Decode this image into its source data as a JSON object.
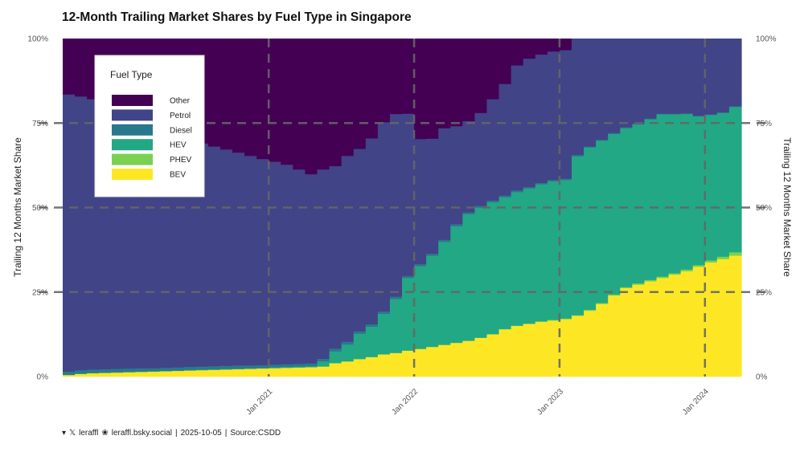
{
  "chart_data": {
    "type": "area",
    "subtype": "stepped-stacked-100",
    "title": "12-Month Trailing Market Shares by Fuel Type in Singapore",
    "xlabel": "",
    "ylabel": "Trailing 12 Months Market Share",
    "ylabel_right": "Trailing 12 Months Market Share",
    "ylim": [
      0,
      1
    ],
    "yticks": [
      0,
      0.25,
      0.5,
      0.75,
      1.0
    ],
    "ytick_labels": [
      "0%",
      "25%",
      "50%",
      "75%",
      "100%"
    ],
    "xticks": [
      {
        "month_index": 17,
        "label": "Jan 2021"
      },
      {
        "month_index": 29,
        "label": "Jan 2022"
      },
      {
        "month_index": 41,
        "label": "Jan 2023"
      },
      {
        "month_index": 53,
        "label": "Jan 2024"
      }
    ],
    "n_months": 56,
    "grid": "dashed at major ticks",
    "legend": {
      "title": "Fuel Type",
      "position": "top-left inset",
      "entries": [
        {
          "name": "Other",
          "color": "#440154"
        },
        {
          "name": "Petrol",
          "color": "#414487"
        },
        {
          "name": "Diesel",
          "color": "#2A788E"
        },
        {
          "name": "HEV",
          "color": "#22A884"
        },
        {
          "name": "PHEV",
          "color": "#7AD151"
        },
        {
          "name": "BEV",
          "color": "#FDE725"
        }
      ]
    },
    "series": [
      {
        "name": "BEV",
        "color": "#FDE725",
        "values": [
          0.005,
          0.008,
          0.01,
          0.011,
          0.012,
          0.013,
          0.014,
          0.015,
          0.016,
          0.017,
          0.018,
          0.019,
          0.02,
          0.021,
          0.022,
          0.023,
          0.024,
          0.025,
          0.026,
          0.027,
          0.028,
          0.03,
          0.04,
          0.045,
          0.052,
          0.058,
          0.066,
          0.07,
          0.077,
          0.082,
          0.088,
          0.094,
          0.1,
          0.106,
          0.115,
          0.125,
          0.14,
          0.15,
          0.156,
          0.162,
          0.166,
          0.17,
          0.18,
          0.195,
          0.215,
          0.24,
          0.262,
          0.272,
          0.282,
          0.292,
          0.302,
          0.312,
          0.325,
          0.338,
          0.348,
          0.358
        ]
      },
      {
        "name": "PHEV",
        "color": "#7AD151",
        "values": [
          0.0,
          0.0,
          0.0,
          0.0,
          0.0,
          0.0,
          0.0,
          0.0,
          0.0,
          0.0,
          0.0,
          0.0,
          0.0,
          0.0,
          0.0,
          0.0,
          0.0,
          0.0,
          0.0,
          0.0,
          0.0,
          0.0,
          0.0,
          0.0,
          0.0,
          0.0,
          0.0,
          0.0,
          0.0,
          0.0,
          0.0,
          0.0,
          0.0,
          0.0,
          0.0,
          0.001,
          0.001,
          0.001,
          0.001,
          0.002,
          0.002,
          0.002,
          0.002,
          0.003,
          0.003,
          0.003,
          0.003,
          0.004,
          0.004,
          0.004,
          0.004,
          0.005,
          0.005,
          0.006,
          0.007,
          0.01
        ]
      },
      {
        "name": "HEV",
        "color": "#22A884",
        "values": [
          0.0,
          0.001,
          0.001,
          0.001,
          0.001,
          0.001,
          0.001,
          0.001,
          0.001,
          0.001,
          0.002,
          0.002,
          0.002,
          0.002,
          0.002,
          0.002,
          0.002,
          0.003,
          0.003,
          0.003,
          0.003,
          0.015,
          0.035,
          0.05,
          0.075,
          0.09,
          0.12,
          0.16,
          0.215,
          0.245,
          0.27,
          0.305,
          0.345,
          0.375,
          0.385,
          0.39,
          0.39,
          0.395,
          0.4,
          0.405,
          0.41,
          0.41,
          0.47,
          0.48,
          0.48,
          0.475,
          0.47,
          0.47,
          0.475,
          0.48,
          0.47,
          0.46,
          0.44,
          0.43,
          0.425,
          0.43
        ]
      },
      {
        "name": "Diesel",
        "color": "#2A788E",
        "values": [
          0.01,
          0.01,
          0.01,
          0.01,
          0.01,
          0.01,
          0.01,
          0.009,
          0.009,
          0.009,
          0.009,
          0.009,
          0.009,
          0.009,
          0.009,
          0.008,
          0.008,
          0.008,
          0.008,
          0.008,
          0.008,
          0.008,
          0.008,
          0.008,
          0.007,
          0.007,
          0.007,
          0.007,
          0.006,
          0.006,
          0.006,
          0.006,
          0.006,
          0.005,
          0.005,
          0.005,
          0.005,
          0.005,
          0.004,
          0.004,
          0.004,
          0.004,
          0.004,
          0.003,
          0.003,
          0.003,
          0.003,
          0.003,
          0.003,
          0.002,
          0.002,
          0.002,
          0.002,
          0.002,
          0.002,
          0.002
        ]
      },
      {
        "name": "Petrol",
        "color": "#414487",
        "values": [
          0.82,
          0.81,
          0.8,
          0.78,
          0.76,
          0.74,
          0.72,
          0.7,
          0.69,
          0.68,
          0.67,
          0.66,
          0.65,
          0.64,
          0.63,
          0.62,
          0.61,
          0.6,
          0.59,
          0.575,
          0.56,
          0.56,
          0.54,
          0.55,
          0.54,
          0.55,
          0.56,
          0.54,
          0.48,
          0.37,
          0.34,
          0.33,
          0.29,
          0.27,
          0.275,
          0.3,
          0.33,
          0.37,
          0.38,
          0.38,
          0.38,
          0.38,
          0.344,
          0.319,
          0.299,
          0.279,
          0.262,
          0.251,
          0.236,
          0.222,
          0.222,
          0.221,
          0.233,
          0.224,
          0.218,
          0.2
        ]
      },
      {
        "name": "Other",
        "color": "#440154",
        "values": [
          0.165,
          0.171,
          0.179,
          0.198,
          0.217,
          0.236,
          0.255,
          0.275,
          0.284,
          0.293,
          0.301,
          0.31,
          0.319,
          0.328,
          0.337,
          0.347,
          0.356,
          0.364,
          0.373,
          0.387,
          0.401,
          0.387,
          0.377,
          0.347,
          0.326,
          0.295,
          0.247,
          0.223,
          0.222,
          0.297,
          0.296,
          0.265,
          0.259,
          0.244,
          0.22,
          0.179,
          0.134,
          0.079,
          0.059,
          0.047,
          0.038,
          0.034,
          0.0,
          0.0,
          0.0,
          0.0,
          0.0,
          0.0,
          0.0,
          0.0,
          0.0,
          0.0,
          0.0,
          0.0,
          0.0,
          0.0
        ]
      }
    ]
  },
  "footer": {
    "icons": [
      "github-icon",
      "x-icon"
    ],
    "handle": "leraffl",
    "bsky": "leraffl.bsky.social",
    "sep1": "|",
    "date": "2025-10-05",
    "sep2": "|",
    "source": "Source:CSDD"
  }
}
